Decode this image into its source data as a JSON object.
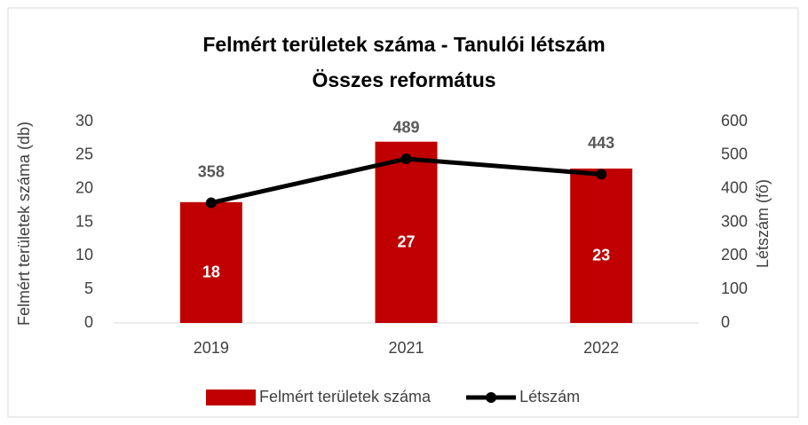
{
  "chart_data": {
    "type": "combo",
    "title": [
      "Felmért területek száma - Tanulói létszám",
      "Összes református"
    ],
    "ylabel": "Felmért területek száma (db)",
    "y2label": "Létszám (fő)",
    "categories": [
      "2019",
      "2021",
      "2022"
    ],
    "series": [
      {
        "name": "Felmért területek száma",
        "type": "bar",
        "color": "#c00000",
        "values": [
          18,
          27,
          23
        ]
      },
      {
        "name": "Létszám",
        "type": "line",
        "axis": "y2",
        "color": "#000000",
        "values": [
          358,
          489,
          443
        ]
      }
    ],
    "ylim": [
      0,
      30
    ],
    "yticks": [
      0,
      5,
      10,
      15,
      20,
      25,
      30
    ],
    "y2lim": [
      0,
      600
    ],
    "y2ticks": [
      0,
      100,
      200,
      300,
      400,
      500,
      600
    ],
    "grid": false,
    "legend": "bottom"
  }
}
